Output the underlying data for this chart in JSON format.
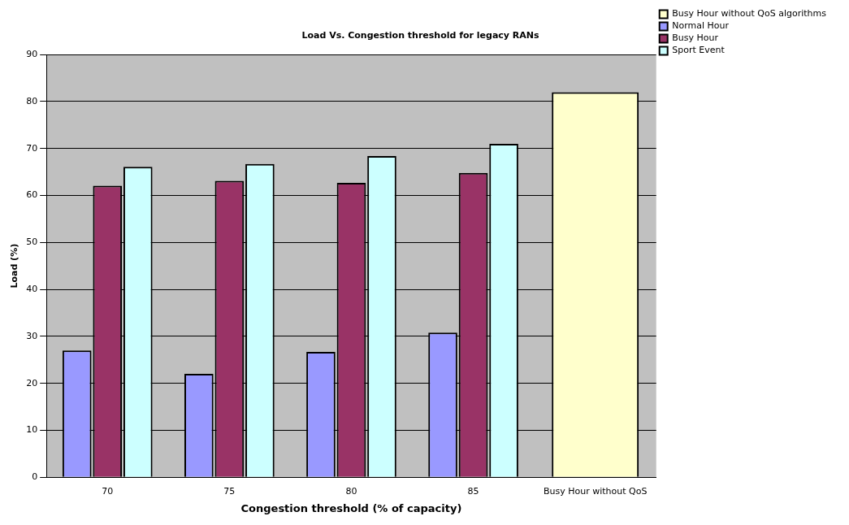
{
  "chart_data": {
    "type": "bar",
    "title": "Load Vs. Congestion threshold for legacy RANs",
    "xlabel": "Congestion threshold (% of capacity)",
    "ylabel": "Load (%)",
    "categories": [
      "70",
      "75",
      "80",
      "85",
      "Busy Hour without QoS"
    ],
    "series": [
      {
        "name": "Busy Hour without QoS algorithms",
        "color": "#ffffcc",
        "values": [
          null,
          null,
          null,
          null,
          82
        ]
      },
      {
        "name": "Normal Hour",
        "color": "#9999ff",
        "values": [
          27,
          22,
          26.7,
          30.8,
          null
        ]
      },
      {
        "name": "Busy Hour",
        "color": "#993366",
        "values": [
          62.1,
          63.1,
          62.7,
          64.8,
          null
        ]
      },
      {
        "name": "Sport Event",
        "color": "#ccffff",
        "values": [
          66.1,
          66.7,
          68.4,
          71,
          null
        ]
      }
    ],
    "ylim": [
      0,
      90
    ],
    "yticks": [
      0,
      10,
      20,
      30,
      40,
      50,
      60,
      70,
      80,
      90
    ],
    "grid": "y",
    "legend": "top right"
  }
}
